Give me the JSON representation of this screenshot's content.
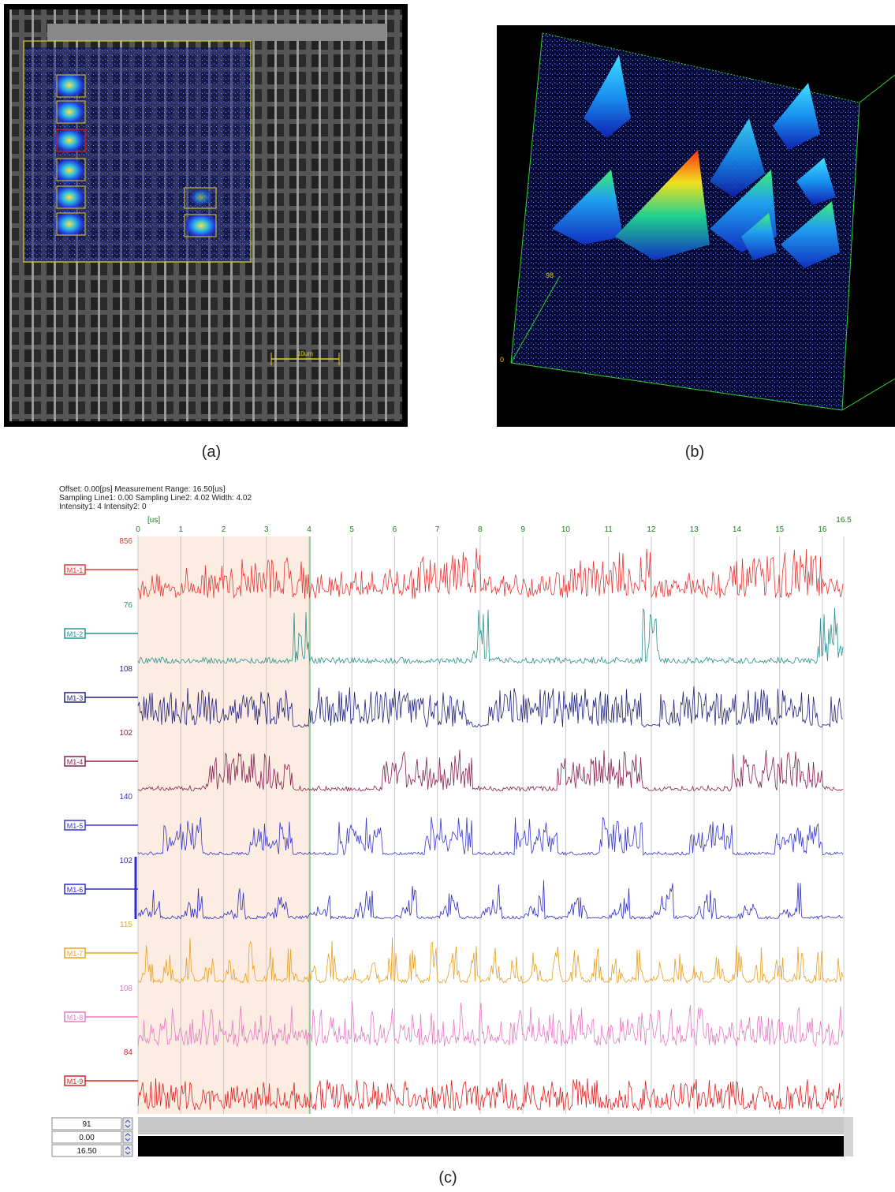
{
  "panels": {
    "a": {
      "caption": "(a)",
      "scale_label": "10um"
    },
    "b": {
      "caption": "(b)",
      "z_top": "98",
      "z_bottom": "0"
    },
    "c": {
      "caption": "(c)",
      "header": [
        "Offset: 0.00[ps]  Measurement Range: 16.50[us]",
        "Sampling Line1: 0.00  Sampling Line2: 4.02  Width: 4.02",
        "Intensity1: 4    Intensity2: 0"
      ],
      "x_unit": "[us]",
      "xlim": [
        0,
        16.5
      ],
      "xticks": [
        0,
        1,
        2,
        3,
        4,
        5,
        6,
        7,
        8,
        9,
        10,
        11,
        12,
        13,
        14,
        15,
        16,
        16.5
      ],
      "sampling_lines": [
        0,
        4.02
      ],
      "traces": [
        {
          "name": "M1-1",
          "max": 856,
          "color": "#e83535"
        },
        {
          "name": "M1-2",
          "max": 76,
          "color": "#2a9090"
        },
        {
          "name": "M1-3",
          "max": 108,
          "color": "#23237e"
        },
        {
          "name": "M1-4",
          "max": 102,
          "color": "#862050"
        },
        {
          "name": "M1-5",
          "max": 140,
          "color": "#3838d0"
        },
        {
          "name": "M1-6",
          "max": 102,
          "color": "#2d2dc4"
        },
        {
          "name": "M1-7",
          "max": 115,
          "color": "#e8a020"
        },
        {
          "name": "M1-8",
          "max": 108,
          "color": "#e878c4"
        },
        {
          "name": "M1-9",
          "max": 84,
          "color": "#e02020"
        }
      ],
      "controls": [
        {
          "value": 91,
          "label": "91"
        },
        {
          "value": 0,
          "label": "0.00"
        },
        {
          "value": 16.5,
          "label": "16.50"
        }
      ]
    }
  }
}
